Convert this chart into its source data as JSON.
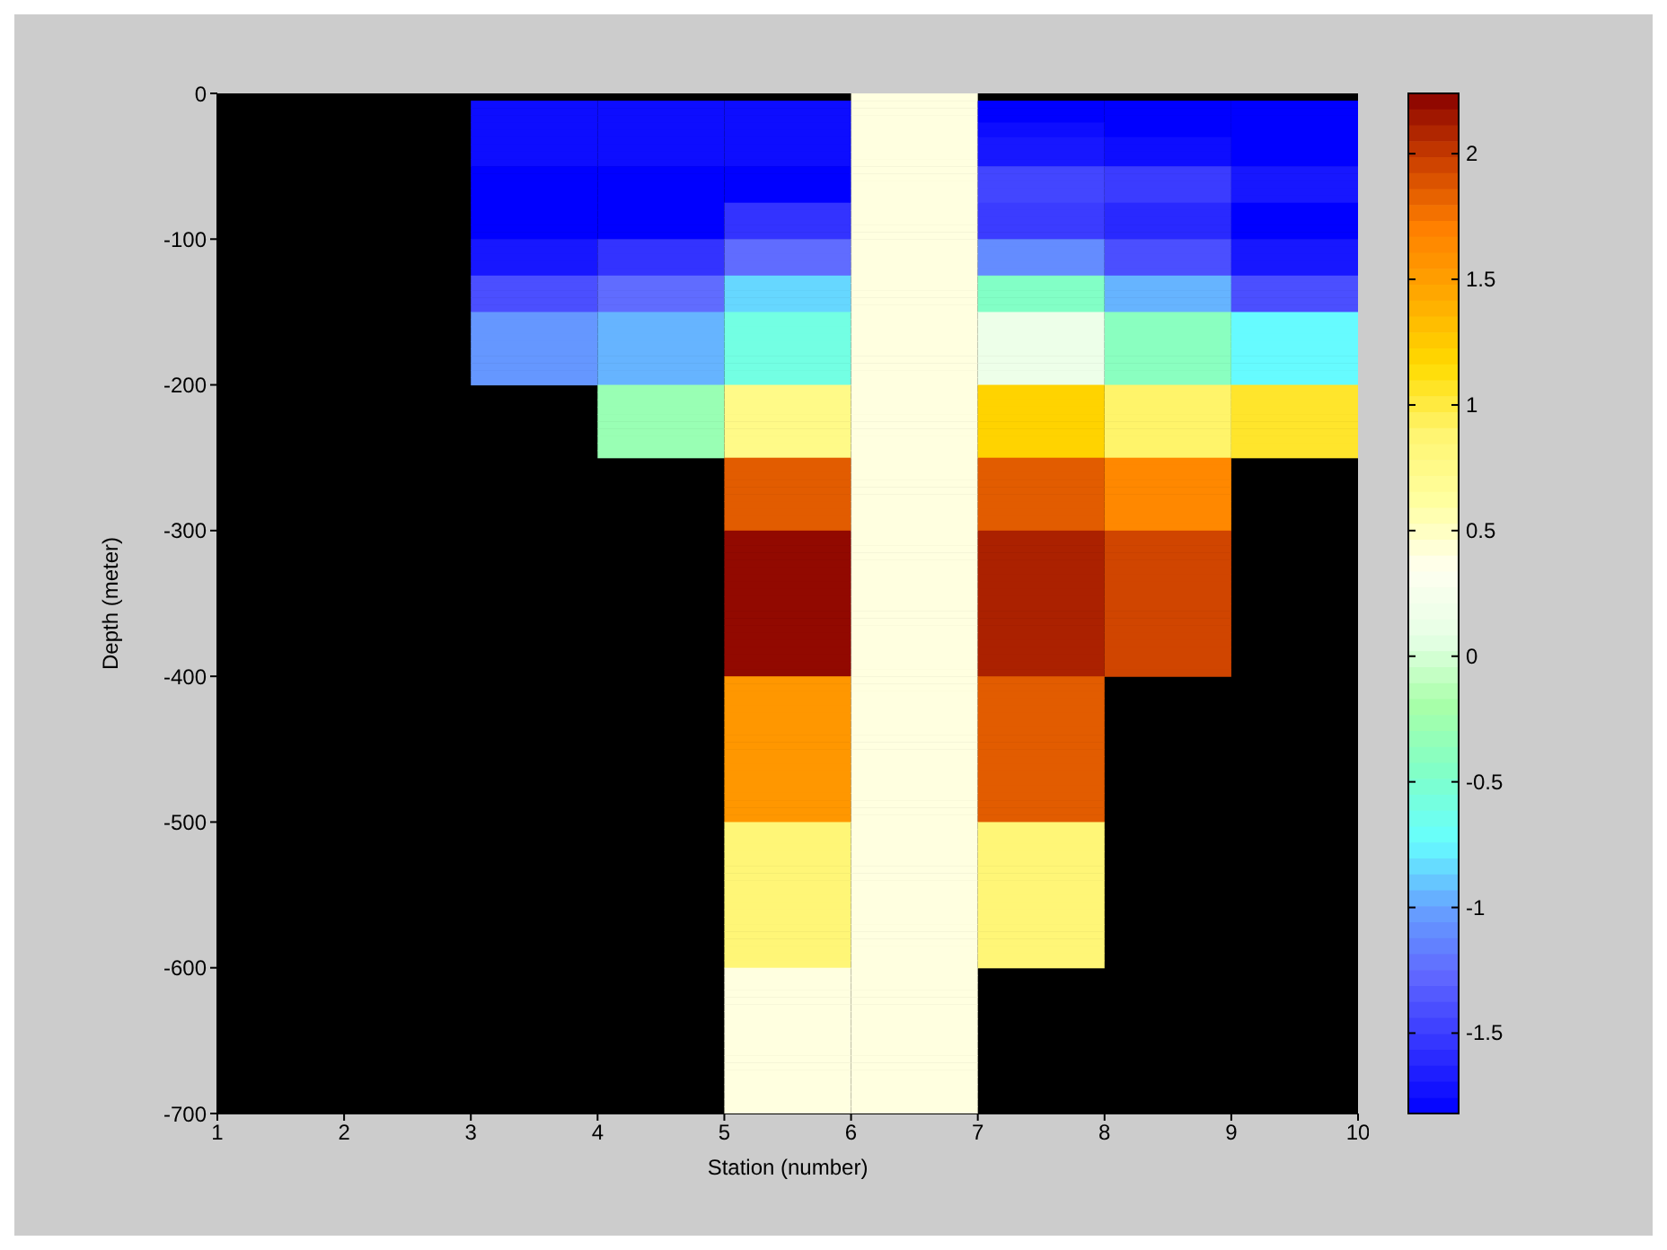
{
  "chart_data": {
    "type": "heatmap",
    "xlabel": "Station (number)",
    "ylabel": "Depth (meter)",
    "x": [
      1.5,
      2.5,
      3.5,
      4.5,
      5.5,
      6.5,
      7.5,
      8.5,
      9.5
    ],
    "xlim": [
      1,
      10
    ],
    "xticks": [
      1,
      2,
      3,
      4,
      5,
      6,
      7,
      8,
      9,
      10
    ],
    "ylim": [
      -700,
      0
    ],
    "yticks": [
      -700,
      -600,
      -500,
      -400,
      -300,
      -200,
      -100,
      0
    ],
    "clim": [
      -1.82,
      2.24
    ],
    "cticks": [
      -1.5,
      -1,
      -0.5,
      0,
      0.5,
      1,
      1.5,
      2
    ],
    "colors": [
      "#0000ff",
      "#3333ff",
      "#5f66ff",
      "#66a0ff",
      "#66ffff",
      "#80ffc8",
      "#a8ffa8",
      "#e6ffe6",
      "#fffff0",
      "#ffffa0",
      "#fff570",
      "#ffdb00",
      "#ffaa00",
      "#ff8000",
      "#cc4000",
      "#880000"
    ],
    "cells": [
      [
        null,
        null,
        null,
        null,
        null,
        0.4,
        null,
        null,
        null
      ],
      [
        null,
        null,
        -1.75,
        -1.75,
        -1.75,
        0.4,
        -1.82,
        -1.82,
        -1.82
      ],
      [
        null,
        null,
        -1.75,
        -1.75,
        -1.75,
        0.4,
        -1.82,
        -1.82,
        -1.82
      ],
      [
        null,
        null,
        -1.75,
        -1.75,
        -1.75,
        0.4,
        -1.82,
        -1.82,
        -1.82
      ],
      [
        null,
        null,
        -1.75,
        -1.75,
        -1.75,
        0.4,
        -1.75,
        -1.82,
        -1.82
      ],
      [
        null,
        null,
        -1.75,
        -1.75,
        -1.75,
        0.4,
        -1.75,
        -1.82,
        -1.82
      ],
      [
        null,
        null,
        -1.75,
        -1.75,
        -1.75,
        0.4,
        -1.7,
        -1.75,
        -1.82
      ],
      [
        null,
        null,
        -1.75,
        -1.75,
        -1.75,
        0.4,
        -1.7,
        -1.75,
        -1.82
      ],
      [
        null,
        null,
        -1.75,
        -1.75,
        -1.75,
        0.4,
        -1.7,
        -1.75,
        -1.82
      ],
      [
        null,
        null,
        -1.75,
        -1.75,
        -1.75,
        0.4,
        -1.7,
        -1.75,
        -1.82
      ],
      [
        null,
        null,
        -1.82,
        -1.82,
        -1.82,
        0.4,
        -1.45,
        -1.5,
        -1.7
      ],
      [
        null,
        null,
        -1.82,
        -1.82,
        -1.82,
        0.4,
        -1.45,
        -1.5,
        -1.7
      ],
      [
        null,
        null,
        -1.82,
        -1.82,
        -1.82,
        0.4,
        -1.45,
        -1.5,
        -1.7
      ],
      [
        null,
        null,
        -1.82,
        -1.82,
        -1.82,
        0.4,
        -1.45,
        -1.5,
        -1.7
      ],
      [
        null,
        null,
        -1.82,
        -1.82,
        -1.82,
        0.4,
        -1.45,
        -1.5,
        -1.7
      ],
      [
        null,
        null,
        -1.82,
        -1.82,
        -1.55,
        0.4,
        -1.5,
        -1.6,
        -1.82
      ],
      [
        null,
        null,
        -1.82,
        -1.82,
        -1.55,
        0.4,
        -1.5,
        -1.6,
        -1.82
      ],
      [
        null,
        null,
        -1.82,
        -1.82,
        -1.55,
        0.4,
        -1.5,
        -1.6,
        -1.82
      ],
      [
        null,
        null,
        -1.82,
        -1.82,
        -1.55,
        0.4,
        -1.5,
        -1.6,
        -1.82
      ],
      [
        null,
        null,
        -1.82,
        -1.82,
        -1.55,
        0.4,
        -1.5,
        -1.6,
        -1.82
      ],
      [
        null,
        null,
        -1.7,
        -1.55,
        -1.25,
        0.4,
        -1.1,
        -1.4,
        -1.7
      ],
      [
        null,
        null,
        -1.7,
        -1.55,
        -1.25,
        0.4,
        -1.1,
        -1.4,
        -1.7
      ],
      [
        null,
        null,
        -1.7,
        -1.55,
        -1.25,
        0.4,
        -1.1,
        -1.4,
        -1.7
      ],
      [
        null,
        null,
        -1.7,
        -1.55,
        -1.25,
        0.4,
        -1.1,
        -1.4,
        -1.7
      ],
      [
        null,
        null,
        -1.7,
        -1.55,
        -1.25,
        0.4,
        -1.1,
        -1.4,
        -1.7
      ],
      [
        null,
        null,
        -1.4,
        -1.25,
        -0.85,
        0.4,
        -0.45,
        -0.95,
        -1.4
      ],
      [
        null,
        null,
        -1.4,
        -1.25,
        -0.85,
        0.4,
        -0.45,
        -0.95,
        -1.4
      ],
      [
        null,
        null,
        -1.4,
        -1.25,
        -0.85,
        0.4,
        -0.45,
        -0.95,
        -1.4
      ],
      [
        null,
        null,
        -1.4,
        -1.25,
        -0.85,
        0.4,
        -0.45,
        -0.95,
        -1.4
      ],
      [
        null,
        null,
        -1.4,
        -1.25,
        -0.85,
        0.4,
        -0.45,
        -0.95,
        -1.4
      ],
      [
        null,
        null,
        -1.05,
        -0.95,
        -0.6,
        0.4,
        0.15,
        -0.4,
        -0.75
      ],
      [
        null,
        null,
        -1.05,
        -0.95,
        -0.6,
        0.4,
        0.15,
        -0.4,
        -0.75
      ],
      [
        null,
        null,
        -1.05,
        -0.95,
        -0.6,
        0.4,
        0.15,
        -0.4,
        -0.75
      ],
      [
        null,
        null,
        -1.05,
        -0.95,
        -0.6,
        0.4,
        0.15,
        -0.4,
        -0.75
      ],
      [
        null,
        null,
        -1.05,
        -0.95,
        -0.6,
        0.4,
        0.15,
        -0.4,
        -0.75
      ],
      [
        null,
        null,
        -1.05,
        -0.95,
        -0.6,
        0.4,
        0.15,
        -0.4,
        -0.75
      ],
      [
        null,
        null,
        -1.05,
        -0.95,
        -0.6,
        0.4,
        0.15,
        -0.4,
        -0.75
      ],
      [
        null,
        null,
        -1.05,
        -0.95,
        -0.6,
        0.4,
        0.15,
        -0.4,
        -0.75
      ],
      [
        null,
        null,
        -1.05,
        -0.95,
        -0.6,
        0.4,
        0.15,
        -0.4,
        -0.75
      ],
      [
        null,
        null,
        -1.05,
        -0.95,
        -0.6,
        0.4,
        0.15,
        -0.4,
        -0.75
      ],
      [
        null,
        null,
        null,
        -0.3,
        0.75,
        0.4,
        1.2,
        0.9,
        1.05
      ],
      [
        null,
        null,
        null,
        -0.3,
        0.75,
        0.4,
        1.2,
        0.9,
        1.05
      ],
      [
        null,
        null,
        null,
        -0.3,
        0.75,
        0.4,
        1.2,
        0.9,
        1.05
      ],
      [
        null,
        null,
        null,
        -0.3,
        0.75,
        0.4,
        1.2,
        0.9,
        1.05
      ],
      [
        null,
        null,
        null,
        -0.3,
        0.75,
        0.4,
        1.2,
        0.9,
        1.05
      ],
      [
        null,
        null,
        null,
        -0.3,
        0.75,
        0.4,
        1.2,
        0.9,
        1.05
      ],
      [
        null,
        null,
        null,
        -0.3,
        0.75,
        0.4,
        1.2,
        0.9,
        1.05
      ],
      [
        null,
        null,
        null,
        -0.3,
        0.75,
        0.4,
        1.2,
        0.9,
        1.05
      ],
      [
        null,
        null,
        null,
        -0.3,
        0.75,
        0.4,
        1.2,
        0.9,
        1.05
      ],
      [
        null,
        null,
        null,
        -0.3,
        0.75,
        0.4,
        1.2,
        0.9,
        1.05
      ],
      [
        null,
        null,
        null,
        null,
        1.85,
        0.4,
        1.85,
        1.65,
        null
      ],
      [
        null,
        null,
        null,
        null,
        1.85,
        0.4,
        1.85,
        1.65,
        null
      ],
      [
        null,
        null,
        null,
        null,
        1.85,
        0.4,
        1.85,
        1.65,
        null
      ],
      [
        null,
        null,
        null,
        null,
        1.85,
        0.4,
        1.85,
        1.65,
        null
      ],
      [
        null,
        null,
        null,
        null,
        1.85,
        0.4,
        1.85,
        1.65,
        null
      ],
      [
        null,
        null,
        null,
        null,
        1.85,
        0.4,
        1.85,
        1.65,
        null
      ],
      [
        null,
        null,
        null,
        null,
        1.85,
        0.4,
        1.85,
        1.65,
        null
      ],
      [
        null,
        null,
        null,
        null,
        1.85,
        0.4,
        1.85,
        1.65,
        null
      ],
      [
        null,
        null,
        null,
        null,
        1.85,
        0.4,
        1.85,
        1.65,
        null
      ],
      [
        null,
        null,
        null,
        null,
        1.85,
        0.4,
        1.85,
        1.65,
        null
      ],
      [
        null,
        null,
        null,
        null,
        2.2,
        0.4,
        2.1,
        1.95,
        null
      ],
      [
        null,
        null,
        null,
        null,
        2.2,
        0.4,
        2.1,
        1.95,
        null
      ],
      [
        null,
        null,
        null,
        null,
        2.2,
        0.4,
        2.1,
        1.95,
        null
      ],
      [
        null,
        null,
        null,
        null,
        2.2,
        0.4,
        2.1,
        1.95,
        null
      ],
      [
        null,
        null,
        null,
        null,
        2.2,
        0.4,
        2.1,
        1.95,
        null
      ],
      [
        null,
        null,
        null,
        null,
        2.2,
        0.4,
        2.1,
        1.95,
        null
      ],
      [
        null,
        null,
        null,
        null,
        2.2,
        0.4,
        2.1,
        1.95,
        null
      ],
      [
        null,
        null,
        null,
        null,
        2.2,
        0.4,
        2.1,
        1.95,
        null
      ],
      [
        null,
        null,
        null,
        null,
        2.2,
        0.4,
        2.1,
        1.95,
        null
      ],
      [
        null,
        null,
        null,
        null,
        2.2,
        0.4,
        2.1,
        1.95,
        null
      ],
      [
        null,
        null,
        null,
        null,
        2.2,
        0.4,
        2.1,
        1.95,
        null
      ],
      [
        null,
        null,
        null,
        null,
        2.2,
        0.4,
        2.1,
        1.95,
        null
      ],
      [
        null,
        null,
        null,
        null,
        2.2,
        0.4,
        2.1,
        1.95,
        null
      ],
      [
        null,
        null,
        null,
        null,
        2.2,
        0.4,
        2.1,
        1.95,
        null
      ],
      [
        null,
        null,
        null,
        null,
        2.2,
        0.4,
        2.1,
        1.95,
        null
      ],
      [
        null,
        null,
        null,
        null,
        2.2,
        0.4,
        2.1,
        1.95,
        null
      ],
      [
        null,
        null,
        null,
        null,
        2.2,
        0.4,
        2.1,
        1.95,
        null
      ],
      [
        null,
        null,
        null,
        null,
        2.2,
        0.4,
        2.1,
        1.95,
        null
      ],
      [
        null,
        null,
        null,
        null,
        2.2,
        0.4,
        2.1,
        1.95,
        null
      ],
      [
        null,
        null,
        null,
        null,
        2.2,
        0.4,
        2.1,
        1.95,
        null
      ],
      [
        null,
        null,
        null,
        null,
        1.55,
        0.4,
        1.85,
        null,
        null
      ],
      [
        null,
        null,
        null,
        null,
        1.55,
        0.4,
        1.85,
        null,
        null
      ],
      [
        null,
        null,
        null,
        null,
        1.55,
        0.4,
        1.85,
        null,
        null
      ],
      [
        null,
        null,
        null,
        null,
        1.55,
        0.4,
        1.85,
        null,
        null
      ],
      [
        null,
        null,
        null,
        null,
        1.55,
        0.4,
        1.85,
        null,
        null
      ],
      [
        null,
        null,
        null,
        null,
        1.55,
        0.4,
        1.85,
        null,
        null
      ],
      [
        null,
        null,
        null,
        null,
        1.55,
        0.4,
        1.85,
        null,
        null
      ],
      [
        null,
        null,
        null,
        null,
        1.55,
        0.4,
        1.85,
        null,
        null
      ],
      [
        null,
        null,
        null,
        null,
        1.55,
        0.4,
        1.85,
        null,
        null
      ],
      [
        null,
        null,
        null,
        null,
        1.55,
        0.4,
        1.85,
        null,
        null
      ],
      [
        null,
        null,
        null,
        null,
        1.55,
        0.4,
        1.85,
        null,
        null
      ],
      [
        null,
        null,
        null,
        null,
        1.55,
        0.4,
        1.85,
        null,
        null
      ],
      [
        null,
        null,
        null,
        null,
        1.55,
        0.4,
        1.85,
        null,
        null
      ],
      [
        null,
        null,
        null,
        null,
        1.55,
        0.4,
        1.85,
        null,
        null
      ],
      [
        null,
        null,
        null,
        null,
        1.55,
        0.4,
        1.85,
        null,
        null
      ],
      [
        null,
        null,
        null,
        null,
        1.55,
        0.4,
        1.85,
        null,
        null
      ],
      [
        null,
        null,
        null,
        null,
        1.55,
        0.4,
        1.85,
        null,
        null
      ],
      [
        null,
        null,
        null,
        null,
        1.55,
        0.4,
        1.85,
        null,
        null
      ],
      [
        null,
        null,
        null,
        null,
        1.55,
        0.4,
        1.85,
        null,
        null
      ],
      [
        null,
        null,
        null,
        null,
        1.55,
        0.4,
        1.85,
        null,
        null
      ],
      [
        null,
        null,
        null,
        null,
        0.85,
        0.4,
        0.85,
        null,
        null
      ],
      [
        null,
        null,
        null,
        null,
        0.85,
        0.4,
        0.85,
        null,
        null
      ],
      [
        null,
        null,
        null,
        null,
        0.85,
        0.4,
        0.85,
        null,
        null
      ],
      [
        null,
        null,
        null,
        null,
        0.85,
        0.4,
        0.85,
        null,
        null
      ],
      [
        null,
        null,
        null,
        null,
        0.85,
        0.4,
        0.85,
        null,
        null
      ],
      [
        null,
        null,
        null,
        null,
        0.85,
        0.4,
        0.85,
        null,
        null
      ],
      [
        null,
        null,
        null,
        null,
        0.85,
        0.4,
        0.85,
        null,
        null
      ],
      [
        null,
        null,
        null,
        null,
        0.85,
        0.4,
        0.85,
        null,
        null
      ],
      [
        null,
        null,
        null,
        null,
        0.85,
        0.4,
        0.85,
        null,
        null
      ],
      [
        null,
        null,
        null,
        null,
        0.85,
        0.4,
        0.85,
        null,
        null
      ],
      [
        null,
        null,
        null,
        null,
        0.85,
        0.4,
        0.85,
        null,
        null
      ],
      [
        null,
        null,
        null,
        null,
        0.85,
        0.4,
        0.85,
        null,
        null
      ],
      [
        null,
        null,
        null,
        null,
        0.85,
        0.4,
        0.85,
        null,
        null
      ],
      [
        null,
        null,
        null,
        null,
        0.85,
        0.4,
        0.85,
        null,
        null
      ],
      [
        null,
        null,
        null,
        null,
        0.85,
        0.4,
        0.85,
        null,
        null
      ],
      [
        null,
        null,
        null,
        null,
        0.85,
        0.4,
        0.85,
        null,
        null
      ],
      [
        null,
        null,
        null,
        null,
        0.85,
        0.4,
        0.85,
        null,
        null
      ],
      [
        null,
        null,
        null,
        null,
        0.85,
        0.4,
        0.85,
        null,
        null
      ],
      [
        null,
        null,
        null,
        null,
        0.85,
        0.4,
        0.85,
        null,
        null
      ],
      [
        null,
        null,
        null,
        null,
        0.85,
        0.4,
        0.85,
        null,
        null
      ],
      [
        null,
        null,
        null,
        null,
        0.4,
        0.4,
        null,
        null,
        null
      ],
      [
        null,
        null,
        null,
        null,
        0.4,
        0.4,
        null,
        null,
        null
      ],
      [
        null,
        null,
        null,
        null,
        0.4,
        0.4,
        null,
        null,
        null
      ],
      [
        null,
        null,
        null,
        null,
        0.4,
        0.4,
        null,
        null,
        null
      ],
      [
        null,
        null,
        null,
        null,
        0.4,
        0.4,
        null,
        null,
        null
      ],
      [
        null,
        null,
        null,
        null,
        0.4,
        0.4,
        null,
        null,
        null
      ],
      [
        null,
        null,
        null,
        null,
        0.4,
        0.4,
        null,
        null,
        null
      ],
      [
        null,
        null,
        null,
        null,
        0.4,
        0.4,
        null,
        null,
        null
      ],
      [
        null,
        null,
        null,
        null,
        0.4,
        0.4,
        null,
        null,
        null
      ],
      [
        null,
        null,
        null,
        null,
        0.4,
        0.4,
        null,
        null,
        null
      ],
      [
        null,
        null,
        null,
        null,
        0.4,
        0.4,
        null,
        null,
        null
      ],
      [
        null,
        null,
        null,
        null,
        0.4,
        0.4,
        null,
        null,
        null
      ],
      [
        null,
        null,
        null,
        null,
        0.4,
        0.4,
        null,
        null,
        null
      ],
      [
        null,
        null,
        null,
        null,
        0.4,
        0.4,
        null,
        null,
        null
      ],
      [
        null,
        null,
        null,
        null,
        0.4,
        0.4,
        null,
        null,
        null
      ],
      [
        null,
        null,
        null,
        null,
        0.4,
        0.4,
        null,
        null,
        null
      ],
      [
        null,
        null,
        null,
        null,
        0.4,
        0.4,
        null,
        null,
        null
      ],
      [
        null,
        null,
        null,
        null,
        0.4,
        0.4,
        null,
        null,
        null
      ],
      [
        null,
        null,
        null,
        null,
        0.4,
        0.4,
        null,
        null,
        null
      ],
      [
        null,
        null,
        null,
        null,
        0.4,
        0.4,
        null,
        null,
        null
      ]
    ]
  }
}
